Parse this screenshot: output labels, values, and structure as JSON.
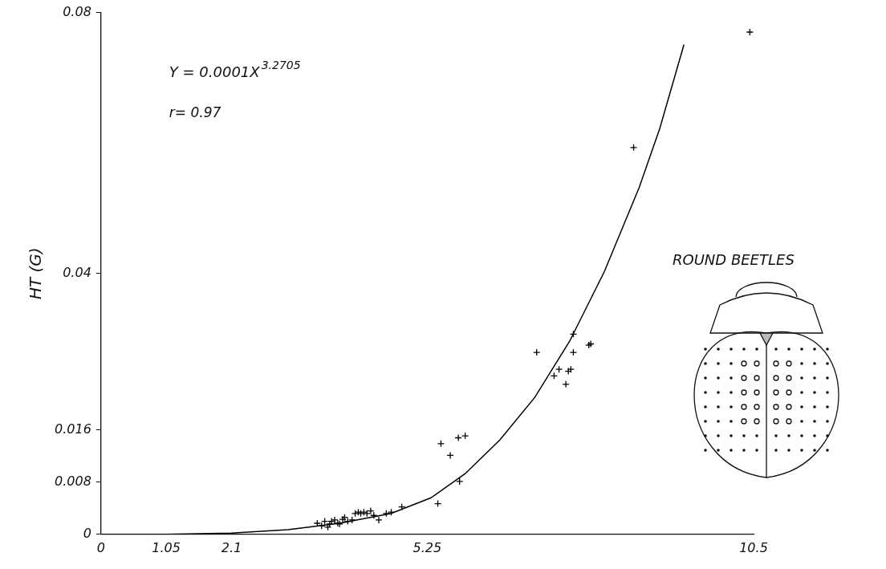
{
  "chart_data": {
    "type": "scatter",
    "y_label": "HT (G)",
    "xlim": [
      0,
      10.5
    ],
    "xticks": [
      0,
      1.05,
      2.1,
      5.25,
      10.5
    ],
    "ylim": [
      0,
      0.08
    ],
    "yticks": [
      0,
      0.008,
      0.016,
      0.04,
      0.08
    ],
    "grid": false,
    "annotations": [
      {
        "text": "Y = 0.0001X",
        "superscript": "3.2705"
      },
      {
        "text": "r= 0.97"
      },
      {
        "text": "ROUND BEETLES"
      }
    ],
    "series": [
      {
        "type": "scatter",
        "marker": "plus",
        "color": "#000000",
        "x": [
          3.48,
          3.55,
          3.6,
          3.65,
          3.68,
          3.71,
          3.76,
          3.81,
          3.84,
          3.89,
          3.92,
          3.97,
          4.04,
          4.09,
          4.14,
          4.18,
          4.23,
          4.28,
          4.34,
          4.39,
          4.47,
          4.59,
          4.67,
          4.84,
          5.42,
          5.47,
          5.62,
          5.75,
          5.86,
          5.77,
          7.01,
          7.29,
          7.37,
          7.48,
          7.52,
          7.56,
          7.6,
          7.6,
          7.85,
          7.88,
          8.57,
          10.44
        ],
        "values": [
          0.0017,
          0.0013,
          0.002,
          0.0011,
          0.0016,
          0.002,
          0.0022,
          0.0017,
          0.0016,
          0.0023,
          0.0026,
          0.002,
          0.0022,
          0.0032,
          0.0034,
          0.0032,
          0.0034,
          0.0032,
          0.0036,
          0.0029,
          0.0022,
          0.0032,
          0.0034,
          0.0042,
          0.0047,
          0.0139,
          0.0121,
          0.0148,
          0.0151,
          0.0081,
          0.0279,
          0.0243,
          0.0253,
          0.023,
          0.025,
          0.0253,
          0.0279,
          0.0307,
          0.029,
          0.0292,
          0.0593,
          0.077
        ]
      },
      {
        "type": "line",
        "line_style": "solid",
        "color": "#000000",
        "x": [
          0,
          1.05,
          2.1,
          3.01,
          3.84,
          4.67,
          5.31,
          5.86,
          6.42,
          6.98,
          7.54,
          8.1,
          8.66,
          8.99,
          9.38
        ],
        "values": [
          0,
          0,
          0.0002,
          0.0007,
          0.0017,
          0.0032,
          0.0056,
          0.0093,
          0.0145,
          0.021,
          0.0296,
          0.0403,
          0.0532,
          0.0622,
          0.0751
        ]
      }
    ]
  }
}
